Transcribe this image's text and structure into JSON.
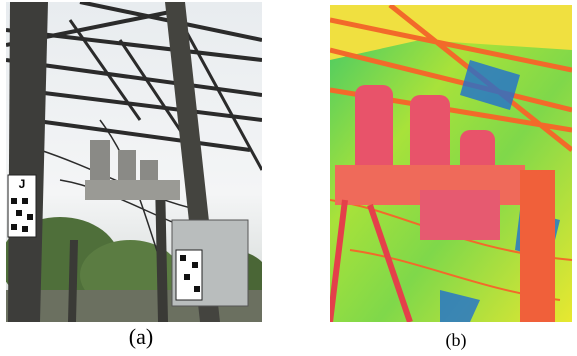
{
  "figure": {
    "panels": [
      {
        "caption": "(a)",
        "sign_label": "J"
      },
      {
        "caption": "(b)"
      }
    ]
  }
}
